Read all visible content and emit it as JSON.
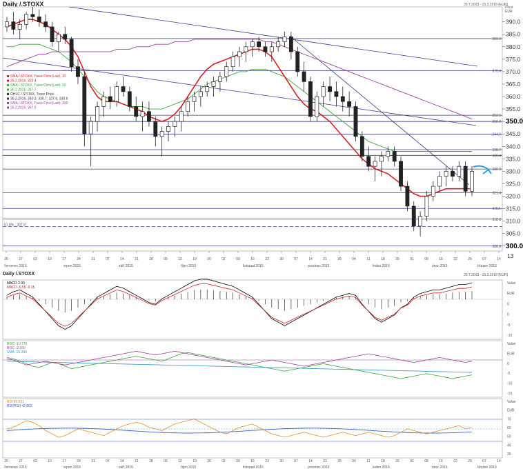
{
  "main": {
    "title": "Daily /.STOXX",
    "range_text": "20.7.2015 - 15.3.2016 (EUR)",
    "unit_top": "Price",
    "unit_bottom": "EUR",
    "extra_tick": "13"
  },
  "osc": {
    "title": "Daily /.STOXX",
    "range_text": "20.7.2015 - 15.3.2016 (EUR)"
  },
  "legend_main": [
    {
      "text": "SMA /.STOXX, Trace Price(Last), 20",
      "color": "#d62020"
    },
    {
      "text": "26.2.2016, 323.4",
      "color": "#d62020"
    },
    {
      "text": "SMA /.STOXX, Trace Price(Last), 50",
      "color": "#3aa53a"
    },
    {
      "text": "26.2.2016, 337.7",
      "color": "#3aa53a"
    },
    {
      "text": "OHLC /.STOXX, Trace Price",
      "color": "#333333"
    },
    {
      "text": "26.2.2016, 330.3, 330.7, 327.6, 330.6",
      "color": "#333333"
    },
    {
      "text": "SMA /.STOXX, Trace Price(Last), 200",
      "color": "#a040a0"
    },
    {
      "text": "26.2.2016, 367.5",
      "color": "#a040a0"
    }
  ],
  "legend_macd": [
    {
      "text": "MACD 2.90",
      "color": "#000000"
    },
    {
      "text": "MACD -9.59 -9.15",
      "color": "#d62020"
    }
  ],
  "legend_roc": [
    {
      "text": "ROC -10.770",
      "color": "#3aa53a"
    },
    {
      "text": "ROC -2.160",
      "color": "#a040a0"
    },
    {
      "text": "SMA -15.299",
      "color": "#3aa0c8"
    }
  ],
  "legend_rsi": [
    {
      "text": "RSI 50.821",
      "color": "#e88a20"
    },
    {
      "text": "RSI(RSI) 42.803",
      "color": "#3a60c8"
    }
  ],
  "level_labels": [
    {
      "value": 383.3,
      "text": "383.3"
    },
    {
      "value": 370.4,
      "text": "370.4"
    },
    {
      "value": 352.5,
      "text": "352.5"
    },
    {
      "value": 350.0,
      "text": "350.0"
    },
    {
      "value": 344.9,
      "text": "344.9"
    },
    {
      "value": 338.7,
      "text": "338.7"
    },
    {
      "value": 336.4,
      "text": "336.4"
    },
    {
      "value": 330.9,
      "text": "330.9"
    },
    {
      "value": 321.4,
      "text": "321.4"
    },
    {
      "value": 315.1,
      "text": "315.1"
    },
    {
      "value": 310.8,
      "text": "310.8"
    },
    {
      "value": 300.0,
      "text": "300.0"
    }
  ],
  "fib_label": "61.8% : 307.8",
  "macd_ticks": [
    "Value",
    "EUR",
    "5",
    "0",
    "-5",
    "-10"
  ],
  "roc_ticks": [
    "Value",
    "EUR",
    "0",
    "-5",
    "-10",
    "-15"
  ],
  "rsi_ticks": [
    "Value",
    "EUR",
    "70",
    "60",
    "50",
    "40",
    "35"
  ],
  "chart_data": {
    "type": "candlestick",
    "title": "Daily /.STOXX",
    "ylim": [
      298,
      396
    ],
    "y_ticks": [
      300,
      305,
      310,
      315,
      320,
      325,
      330,
      335,
      340,
      345,
      350,
      355,
      360,
      365,
      370,
      375,
      380,
      385,
      390
    ],
    "x_day_ticks": [
      "20",
      "27",
      "03",
      "10",
      "17",
      "24",
      "31",
      "07",
      "14",
      "21",
      "28",
      "05",
      "12",
      "19",
      "26",
      "02",
      "09",
      "16",
      "23",
      "30",
      "07",
      "14",
      "21",
      "28",
      "04",
      "11",
      "18",
      "25",
      "01",
      "08",
      "15",
      "22",
      "29",
      "07",
      "14"
    ],
    "month_labels": [
      "červenec 2015",
      "srpen 2015",
      "září 2015",
      "říjen 2015",
      "listopad 2015",
      "prosinec 2015",
      "leden 2016",
      "únor 2016",
      "březen 2016"
    ],
    "ohlc": [
      [
        388,
        392,
        386,
        390
      ],
      [
        390,
        394,
        385,
        387
      ],
      [
        387,
        391,
        383,
        389
      ],
      [
        389,
        394,
        387,
        393
      ],
      [
        393,
        396,
        390,
        392
      ],
      [
        392,
        395,
        388,
        390
      ],
      [
        390,
        393,
        386,
        388
      ],
      [
        388,
        390,
        380,
        382
      ],
      [
        382,
        386,
        378,
        385
      ],
      [
        385,
        388,
        381,
        383
      ],
      [
        383,
        384,
        370,
        372
      ],
      [
        372,
        375,
        365,
        368
      ],
      [
        368,
        370,
        340,
        345
      ],
      [
        345,
        352,
        332,
        350
      ],
      [
        350,
        358,
        346,
        356
      ],
      [
        356,
        362,
        352,
        360
      ],
      [
        360,
        364,
        355,
        358
      ],
      [
        358,
        366,
        356,
        364
      ],
      [
        364,
        368,
        360,
        362
      ],
      [
        362,
        364,
        354,
        356
      ],
      [
        356,
        360,
        350,
        352
      ],
      [
        352,
        358,
        346,
        354
      ],
      [
        354,
        358,
        348,
        350
      ],
      [
        350,
        352,
        340,
        344
      ],
      [
        344,
        348,
        336,
        346
      ],
      [
        346,
        350,
        342,
        348
      ],
      [
        348,
        352,
        344,
        350
      ],
      [
        350,
        356,
        346,
        354
      ],
      [
        354,
        360,
        352,
        358
      ],
      [
        358,
        362,
        354,
        360
      ],
      [
        360,
        364,
        356,
        362
      ],
      [
        362,
        366,
        360,
        364
      ],
      [
        364,
        368,
        360,
        366
      ],
      [
        366,
        370,
        362,
        368
      ],
      [
        368,
        374,
        366,
        372
      ],
      [
        372,
        378,
        370,
        376
      ],
      [
        376,
        380,
        372,
        378
      ],
      [
        378,
        382,
        374,
        380
      ],
      [
        380,
        383,
        376,
        382
      ],
      [
        382,
        384,
        378,
        380
      ],
      [
        380,
        382,
        376,
        378
      ],
      [
        378,
        382,
        374,
        380
      ],
      [
        380,
        384,
        378,
        382
      ],
      [
        382,
        386,
        380,
        384
      ],
      [
        384,
        386,
        375,
        378
      ],
      [
        378,
        380,
        368,
        370
      ],
      [
        370,
        374,
        362,
        366
      ],
      [
        366,
        368,
        350,
        352
      ],
      [
        352,
        362,
        350,
        360
      ],
      [
        360,
        366,
        356,
        364
      ],
      [
        364,
        368,
        358,
        362
      ],
      [
        362,
        366,
        356,
        360
      ],
      [
        360,
        364,
        354,
        358
      ],
      [
        358,
        362,
        352,
        356
      ],
      [
        356,
        358,
        342,
        344
      ],
      [
        344,
        346,
        334,
        336
      ],
      [
        336,
        340,
        330,
        332
      ],
      [
        332,
        336,
        326,
        334
      ],
      [
        334,
        338,
        328,
        336
      ],
      [
        336,
        340,
        334,
        338
      ],
      [
        338,
        340,
        332,
        334
      ],
      [
        334,
        336,
        322,
        324
      ],
      [
        324,
        326,
        314,
        316
      ],
      [
        316,
        318,
        306,
        308
      ],
      [
        308,
        314,
        304,
        312
      ],
      [
        312,
        322,
        310,
        320
      ],
      [
        320,
        326,
        318,
        324
      ],
      [
        324,
        330,
        322,
        328
      ],
      [
        328,
        332,
        324,
        330
      ],
      [
        330,
        332,
        326,
        328
      ],
      [
        328,
        334,
        326,
        332
      ],
      [
        332,
        334,
        320,
        322
      ],
      [
        322,
        332,
        320,
        330
      ]
    ],
    "sma20": [
      388,
      389,
      390,
      391,
      391,
      390,
      389,
      387,
      385,
      383,
      380,
      376,
      370,
      364,
      360,
      358,
      358,
      358,
      357,
      356,
      355,
      354,
      352,
      351,
      350,
      351,
      353,
      356,
      360,
      364,
      368,
      371,
      373,
      374,
      375,
      376,
      377,
      378,
      379,
      379,
      378,
      376,
      372,
      368,
      364,
      360,
      357,
      355,
      354,
      352,
      350,
      347,
      344,
      341,
      338,
      335,
      333,
      331,
      330,
      329,
      327,
      325,
      323,
      321,
      320,
      320,
      321,
      322,
      323,
      323,
      323,
      323,
      323
    ],
    "sma50": [
      380,
      380,
      381,
      381,
      381,
      381,
      380,
      379,
      378,
      376,
      374,
      371,
      368,
      365,
      362,
      360,
      359,
      358,
      357,
      356,
      356,
      356,
      355,
      355,
      355,
      356,
      357,
      358,
      359,
      361,
      363,
      365,
      366,
      367,
      368,
      369,
      370,
      370,
      371,
      371,
      371,
      370,
      369,
      368,
      366,
      364,
      362,
      360,
      358,
      356,
      354,
      352,
      350,
      348,
      346,
      344,
      342,
      341,
      340,
      339,
      338,
      338,
      338,
      338,
      338,
      338,
      338,
      338,
      338,
      338,
      338,
      338,
      338
    ],
    "sma200": [
      372,
      373,
      374,
      375,
      376,
      377,
      377,
      378,
      378,
      378,
      378,
      378,
      378,
      378,
      378,
      378,
      378,
      379,
      379,
      379,
      380,
      380,
      380,
      381,
      381,
      381,
      382,
      382,
      382,
      383,
      383,
      383,
      383,
      383,
      383,
      383,
      383,
      383,
      383,
      383,
      382,
      382,
      381,
      380,
      379,
      378,
      377,
      376,
      375,
      374,
      373,
      372,
      371,
      370,
      369,
      368,
      367,
      366,
      365,
      364,
      363,
      362,
      361,
      360,
      359,
      358,
      357,
      356,
      355,
      354,
      353,
      352,
      351
    ]
  }
}
